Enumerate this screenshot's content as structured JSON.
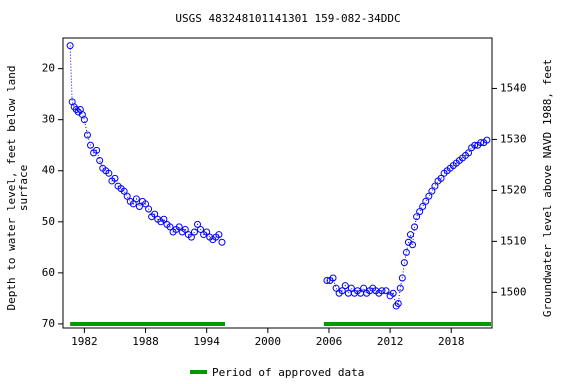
{
  "chart_data": {
    "type": "scatter",
    "title": "USGS 483248101141301 159-082-34DDC",
    "ylabel": [
      "Depth to water level, feet below land",
      "surface"
    ],
    "y2label": "Groundwater level above NAVD 1988, feet",
    "xlim": [
      1979.9,
      2022.0
    ],
    "xticks": [
      1982,
      1988,
      1994,
      2000,
      2006,
      2012,
      2018
    ],
    "ylim": [
      14,
      70.8
    ],
    "yticks": [
      20,
      30,
      40,
      50,
      60,
      70
    ],
    "y_inverted": true,
    "y2lim": [
      1493,
      1549.9
    ],
    "y2ticks": [
      1500,
      1510,
      1520,
      1530,
      1540
    ],
    "series": [
      {
        "color": "#0000ff",
        "x": [
          1980.6,
          1980.8,
          1981.0,
          1981.2,
          1981.4,
          1981.6,
          1981.8,
          1982.0,
          1982.3,
          1982.6,
          1982.9,
          1983.2,
          1983.5,
          1983.8,
          1984.1,
          1984.4,
          1984.7,
          1985.0,
          1985.3,
          1985.6,
          1985.9,
          1986.2,
          1986.5,
          1986.8,
          1987.1,
          1987.4,
          1987.7,
          1988.0,
          1988.3,
          1988.6,
          1988.9,
          1989.2,
          1989.5,
          1989.8,
          1990.1,
          1990.4,
          1990.7,
          1991.0,
          1991.3,
          1991.6,
          1991.9,
          1992.2,
          1992.5,
          1992.8,
          1993.1,
          1993.4,
          1993.7,
          1994.0,
          1994.3,
          1994.6,
          1994.9,
          1995.2,
          1995.5,
          2000.0,
          2005.8,
          2006.1,
          2006.4,
          2006.7,
          2007.0,
          2007.3,
          2007.6,
          2007.9,
          2008.2,
          2008.5,
          2008.8,
          2009.1,
          2009.4,
          2009.7,
          2010.0,
          2010.3,
          2010.6,
          2010.9,
          2011.2,
          2011.6,
          2012.0,
          2012.3,
          2012.6,
          2012.8,
          2013.0,
          2013.2,
          2013.4,
          2013.6,
          2013.8,
          2014.0,
          2014.2,
          2014.4,
          2014.6,
          2014.9,
          2015.2,
          2015.5,
          2015.8,
          2016.1,
          2016.4,
          2016.7,
          2017.0,
          2017.3,
          2017.6,
          2017.9,
          2018.2,
          2018.5,
          2018.8,
          2019.1,
          2019.4,
          2019.7,
          2020.0,
          2020.3,
          2020.6,
          2020.9,
          2021.2,
          2021.5
        ],
        "values": [
          15.5,
          26.5,
          27.5,
          28,
          28.5,
          28,
          29,
          30,
          33,
          35,
          36.5,
          36,
          38,
          39.5,
          40,
          40.5,
          42,
          41.5,
          43,
          43.5,
          44,
          45,
          46,
          46.5,
          45.5,
          47,
          46,
          46.5,
          47.5,
          49,
          48.5,
          49.5,
          50,
          49.5,
          50.5,
          51,
          52,
          51.5,
          51,
          52,
          51.5,
          52.5,
          53,
          52,
          50.5,
          51.5,
          52.5,
          52,
          53,
          53.5,
          53,
          52.5,
          54,
          null,
          61.5,
          61.5,
          61,
          63,
          64,
          63.5,
          62.5,
          64,
          63,
          64,
          63.5,
          64,
          63,
          64,
          63.5,
          63,
          63.5,
          64,
          63.5,
          63.5,
          64.5,
          64,
          66.5,
          66,
          63,
          61,
          58,
          56,
          54,
          52.5,
          54.5,
          51,
          49,
          48,
          47,
          46,
          45,
          44,
          43,
          42,
          41.5,
          40.5,
          40,
          39.5,
          39,
          38.5,
          38,
          37.5,
          37,
          36.5,
          35.5,
          35,
          35,
          34.5,
          34.5,
          34
        ]
      }
    ],
    "approved_periods": [
      [
        1980.6,
        1995.8
      ],
      [
        2005.5,
        2021.9
      ]
    ],
    "approved_color": "#009900",
    "legend": "Period of approved data"
  }
}
